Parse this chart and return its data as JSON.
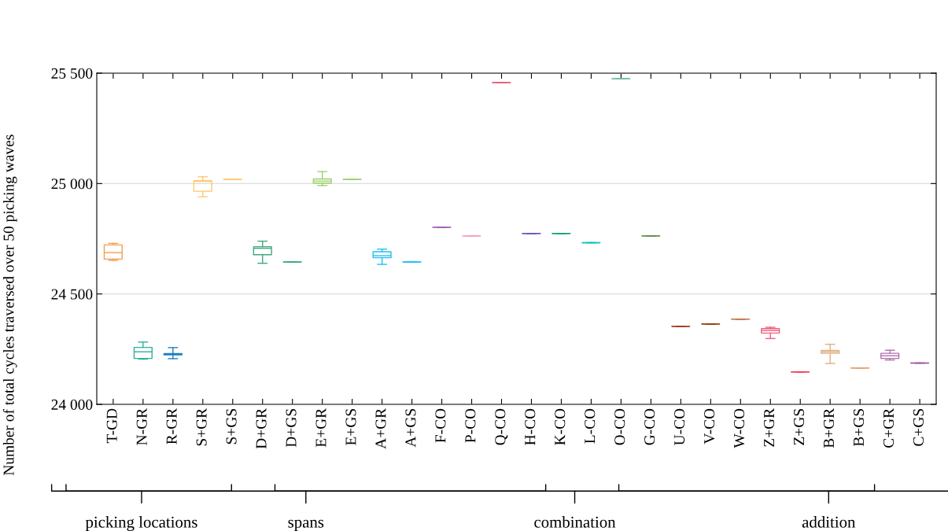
{
  "chart_data": {
    "type": "box",
    "ylabel": "Number of total cycles traversed over 50 picking waves",
    "categories": [
      "T-GD",
      "N-GR",
      "R-GR",
      "S+GR",
      "S+GS",
      "D+GR",
      "D+GS",
      "E+GR",
      "E+GS",
      "A+GR",
      "A+GS",
      "F-CO",
      "P-CO",
      "Q-CO",
      "H-CO",
      "K-CO",
      "L-CO",
      "O-CO",
      "G-CO",
      "U-CO",
      "V-CO",
      "W-CO",
      "Z+GR",
      "Z+GS",
      "B+GR",
      "B+GS",
      "C+GR",
      "C+GS"
    ],
    "boxes": [
      {
        "low": 24652,
        "q1": 24658,
        "median": 24687,
        "q3": 24722,
        "high": 24729
      },
      {
        "low": 24205,
        "q1": 24208,
        "median": 24238,
        "q3": 24258,
        "high": 24282
      },
      {
        "low": 24207,
        "q1": 24224,
        "median": 24227,
        "q3": 24230,
        "high": 24257
      },
      {
        "low": 24940,
        "q1": 24965,
        "median": 25010,
        "q3": 25013,
        "high": 25031
      },
      {
        "low": 25019,
        "q1": 25019,
        "median": 25019,
        "q3": 25019,
        "high": 25019
      },
      {
        "low": 24639,
        "q1": 24678,
        "median": 24707,
        "q3": 24714,
        "high": 24739
      },
      {
        "low": 24645,
        "q1": 24645,
        "median": 24645,
        "q3": 24645,
        "high": 24645
      },
      {
        "low": 24991,
        "q1": 25002,
        "median": 25011,
        "q3": 25021,
        "high": 25054
      },
      {
        "low": 25019,
        "q1": 25019,
        "median": 25019,
        "q3": 25019,
        "high": 25019
      },
      {
        "low": 24634,
        "q1": 24664,
        "median": 24673,
        "q3": 24691,
        "high": 24703
      },
      {
        "low": 24645,
        "q1": 24645,
        "median": 24645,
        "q3": 24645,
        "high": 24645
      },
      {
        "low": 24802,
        "q1": 24802,
        "median": 24802,
        "q3": 24802,
        "high": 24802
      },
      {
        "low": 24763,
        "q1": 24763,
        "median": 24763,
        "q3": 24763,
        "high": 24763
      },
      {
        "low": 25457,
        "q1": 25457,
        "median": 25457,
        "q3": 25457,
        "high": 25457
      },
      {
        "low": 24774,
        "q1": 24774,
        "median": 24774,
        "q3": 24774,
        "high": 24774
      },
      {
        "low": 24774,
        "q1": 24774,
        "median": 24774,
        "q3": 24774,
        "high": 24774
      },
      {
        "low": 24732,
        "q1": 24732,
        "median": 24732,
        "q3": 24732,
        "high": 24732
      },
      {
        "low": 25475,
        "q1": 25475,
        "median": 25475,
        "q3": 25475,
        "high": 25475
      },
      {
        "low": 24763,
        "q1": 24763,
        "median": 24763,
        "q3": 24763,
        "high": 24763
      },
      {
        "low": 24353,
        "q1": 24353,
        "median": 24353,
        "q3": 24353,
        "high": 24353
      },
      {
        "low": 24364,
        "q1": 24364,
        "median": 24364,
        "q3": 24364,
        "high": 24364
      },
      {
        "low": 24386,
        "q1": 24386,
        "median": 24386,
        "q3": 24386,
        "high": 24386
      },
      {
        "low": 24298,
        "q1": 24323,
        "median": 24334,
        "q3": 24343,
        "high": 24349
      },
      {
        "low": 24147,
        "q1": 24147,
        "median": 24147,
        "q3": 24147,
        "high": 24147
      },
      {
        "low": 24185,
        "q1": 24231,
        "median": 24238,
        "q3": 24244,
        "high": 24272
      },
      {
        "low": 24165,
        "q1": 24165,
        "median": 24165,
        "q3": 24165,
        "high": 24165
      },
      {
        "low": 24201,
        "q1": 24208,
        "median": 24220,
        "q3": 24231,
        "high": 24245
      },
      {
        "low": 24187,
        "q1": 24187,
        "median": 24187,
        "q3": 24187,
        "high": 24187
      }
    ],
    "colors": [
      "#f0a050",
      "#30b0a0",
      "#2080c0",
      "#ffc870",
      "#ffc870",
      "#40a880",
      "#40a880",
      "#a0d070",
      "#a0d070",
      "#20c0f0",
      "#20c0f0",
      "#a060b0",
      "#f0a0c0",
      "#e06080",
      "#7050c0",
      "#10a080",
      "#10c0c0",
      "#70c0a0",
      "#609050",
      "#a04020",
      "#904010",
      "#c07040",
      "#f06080",
      "#f04060",
      "#e0b080",
      "#e0a070",
      "#b070b0",
      "#a060a0"
    ],
    "ylim": [
      24000,
      25500
    ],
    "yticks": [
      {
        "value": 24000,
        "label": "24 000"
      },
      {
        "value": 24500,
        "label": "24 500"
      },
      {
        "value": 25000,
        "label": "25 000"
      },
      {
        "value": 25500,
        "label": "25 500"
      }
    ],
    "grid": "y",
    "annotations": [
      "picking locations",
      "spans",
      "combination",
      "addition"
    ]
  }
}
